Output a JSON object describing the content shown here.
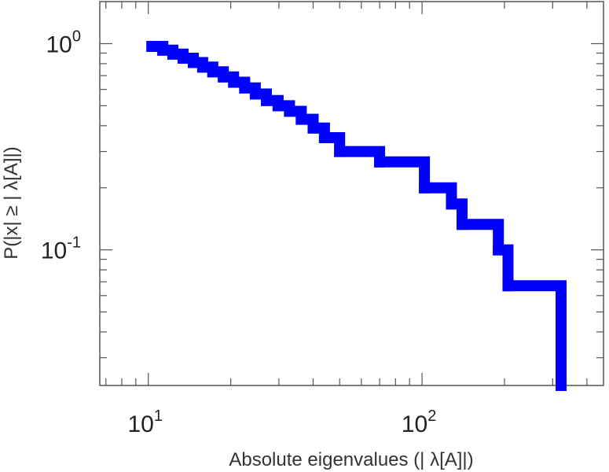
{
  "chart_data": {
    "type": "line",
    "title": "",
    "xlabel": "Absolute eigenvalues (|     λ[A]|)",
    "ylabel": "P(|x|  ≥ | λ[A]|)",
    "xscale": "log",
    "yscale": "log",
    "xlim": [
      6.65,
      460
    ],
    "ylim": [
      0.022,
      1.6
    ],
    "x_ticks": [
      {
        "base": "10",
        "exp": "1",
        "value": 10
      },
      {
        "base": "10",
        "exp": "2",
        "value": 100
      }
    ],
    "y_ticks": [
      {
        "base": "10",
        "exp": "0",
        "value": 1
      },
      {
        "base": "10",
        "exp": "-1",
        "value": 0.1
      }
    ],
    "grid": false,
    "legend": "none",
    "series": [
      {
        "color": "#0000ff",
        "step": true,
        "x": [
          10.3,
          11.3,
          12.3,
          13.4,
          14.6,
          15.8,
          17.2,
          18.8,
          20.5,
          22.5,
          24.6,
          27,
          29.8,
          32.8,
          36.2,
          40,
          44,
          50,
          70,
          102,
          128,
          140,
          190,
          206,
          322,
          322
        ],
        "y": [
          0.97,
          0.93,
          0.89,
          0.85,
          0.81,
          0.77,
          0.73,
          0.69,
          0.65,
          0.61,
          0.57,
          0.53,
          0.5,
          0.47,
          0.43,
          0.39,
          0.35,
          0.3,
          0.267,
          0.2,
          0.167,
          0.133,
          0.1,
          0.067,
          0.033,
          0.022
        ]
      }
    ]
  }
}
